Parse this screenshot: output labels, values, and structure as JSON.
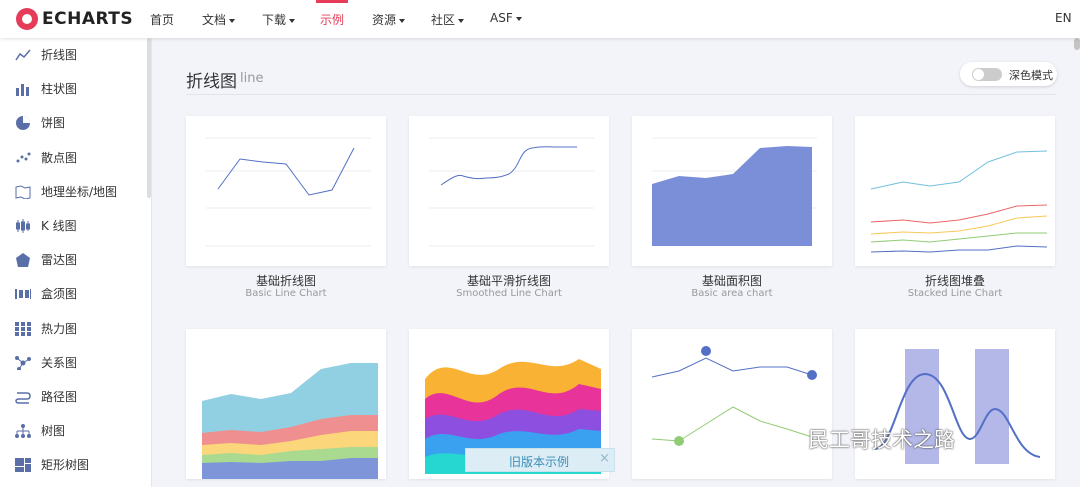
{
  "nav": {
    "logo": "ECHARTS",
    "items": [
      {
        "label": "首页",
        "dropdown": false
      },
      {
        "label": "文档",
        "dropdown": true
      },
      {
        "label": "下载",
        "dropdown": true
      },
      {
        "label": "示例",
        "dropdown": false,
        "active": true
      },
      {
        "label": "资源",
        "dropdown": true
      },
      {
        "label": "社区",
        "dropdown": true
      },
      {
        "label": "ASF",
        "dropdown": true
      }
    ],
    "lang": "EN"
  },
  "sidebar": {
    "items": [
      "折线图",
      "柱状图",
      "饼图",
      "散点图",
      "地理坐标/地图",
      "K 线图",
      "雷达图",
      "盒须图",
      "热力图",
      "关系图",
      "路径图",
      "树图",
      "矩形树图"
    ]
  },
  "section": {
    "title": "折线图",
    "subtitle": "line"
  },
  "dark_mode_toggle": {
    "label": "深色模式"
  },
  "cards": [
    {
      "title": "基础折线图",
      "subtitle": "Basic Line Chart"
    },
    {
      "title": "基础平滑折线图",
      "subtitle": "Smoothed Line Chart"
    },
    {
      "title": "基础面积图",
      "subtitle": "Basic area chart"
    },
    {
      "title": "折线图堆叠",
      "subtitle": "Stacked Line Chart"
    }
  ],
  "banner": {
    "text": "旧版本示例"
  },
  "watermark": "民工哥技术之路"
}
